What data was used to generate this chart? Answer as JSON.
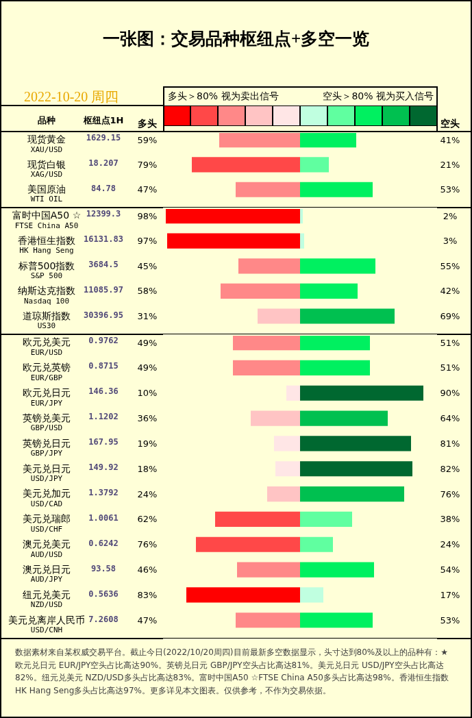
{
  "chart_data": [
    {
      "type": "other",
      "title": "一张图：交易品种枢纽点+多空一览",
      "subtitle": "2022-10-20 周四",
      "xlabel": "枢纽点1H",
      "categories": [
        null,
        null,
        null
      ],
      "values": [
        1629.15,
        18.207,
        84.78
      ],
      "data_labels": true
    },
    {
      "type": "bar",
      "orientation": "horizontal",
      "ylabel": "品种",
      "xlabel": "多头",
      "categories": [
        "现货黄金\nXAU/USD",
        "现货白银\nXAG/USD",
        "美国原油\nWTI OIL"
      ],
      "values": [
        59,
        79,
        47
      ],
      "colors": [
        "#ff8888",
        "#ff4848",
        "#ff8888"
      ],
      "value_labels": [
        "59%",
        "79%",
        "47%"
      ],
      "xlim": [
        100,
        0
      ],
      "annotations": [
        "多头＞80% 视为卖出信号"
      ]
    },
    {
      "type": "bar",
      "orientation": "horizontal",
      "xlabel": "空头",
      "categories": [
        null,
        null,
        null
      ],
      "values": [
        41,
        21,
        53
      ],
      "colors": [
        "#00f060",
        "#60ffa0",
        "#00f060"
      ],
      "value_labels": [
        "41%",
        "21%",
        "53%"
      ],
      "xlim": [
        0,
        100
      ],
      "annotations": [
        "空头＞80% 视为买入信号"
      ]
    },
    {
      "type": "other",
      "categories": [
        null,
        null,
        null,
        null,
        null
      ],
      "values": [
        12399.3,
        16131.83,
        3684.5,
        11085.97,
        30396.95
      ],
      "data_labels": true
    },
    {
      "type": "bar",
      "orientation": "horizontal",
      "categories": [
        "富时中国A50 ☆\nFTSE China A50",
        "香港恒生指数\nHK Hang Seng",
        "标普500指数\nS&P 500",
        "纳斯达克指数\nNasdaq 100",
        "道琼斯指数\nUS30"
      ],
      "values": [
        98,
        97,
        45,
        58,
        31
      ],
      "colors": [
        "#ff0000",
        "#ff0000",
        "#ff8888",
        "#ff8888",
        "#ffc4c4"
      ],
      "value_labels": [
        "98%",
        "97%",
        "45%",
        "58%",
        "31%"
      ],
      "xlim": [
        100,
        0
      ]
    },
    {
      "type": "bar",
      "orientation": "horizontal",
      "categories": [
        null,
        null,
        null,
        null,
        null
      ],
      "values": [
        2,
        3,
        55,
        42,
        69
      ],
      "colors": [
        "#c0ffe0",
        "#c0ffe0",
        "#00f060",
        "#00f060",
        "#00c050"
      ],
      "value_labels": [
        "2%",
        "3%",
        "55%",
        "42%",
        "69%"
      ],
      "xlim": [
        0,
        100
      ]
    },
    {
      "type": "other",
      "categories": [
        null,
        null,
        null,
        null,
        null,
        null,
        null,
        null,
        null,
        null,
        null,
        null
      ],
      "values": [
        0.9762,
        0.8715,
        146.36,
        1.1202,
        167.95,
        149.92,
        1.3792,
        1.0061,
        0.6242,
        93.58,
        0.5636,
        7.2608
      ],
      "data_labels": true,
      "annotations": [
        "数据素材来自某权威交易平台。截止今日(2022/10/20周四)目前最新多空数据显示，头寸达到80%及以上的品种有：★ 欧元兑日元 EUR/JPY空头占比高达90%。英镑兑日元 GBP/JPY空头占比高达81%。美元兑日元 USD/JPY空头占比高达82%。纽元兑美元 NZD/USD多头占比高达83%。富时中国A50 ☆FTSE China A50多头占比高达98%。香港恒生指数 HK Hang Seng多头占比高达97%。更多详见本文图表。仅供参考，不作为交易依据。"
      ]
    },
    {
      "type": "bar",
      "orientation": "horizontal",
      "categories": [
        "欧元兑美元\nEUR/USD",
        "欧元兑英镑\nEUR/GBP",
        "欧元兑日元\nEUR/JPY",
        "英镑兑美元\nGBP/USD",
        "英镑兑日元\nGBP/JPY",
        "美元兑日元\nUSD/JPY",
        "美元兑加元\nUSD/CAD",
        "美元兑瑞郎\nUSD/CHF",
        "澳元兑美元\nAUD/USD",
        "澳元兑日元\nAUD/JPY",
        "纽元兑美元\nNZD/USD",
        "美元兑离岸人民币\nUSD/CNH"
      ],
      "values": [
        49,
        49,
        10,
        36,
        19,
        18,
        24,
        62,
        76,
        46,
        83,
        47
      ],
      "colors": [
        "#ff8888",
        "#ff8888",
        "#ffe6e6",
        "#ffc4c4",
        "#ffe6e6",
        "#ffe6e6",
        "#ffc4c4",
        "#ff4848",
        "#ff4848",
        "#ff8888",
        "#ff0000",
        "#ff8888"
      ],
      "value_labels": [
        "49%",
        "49%",
        "10%",
        "36%",
        "19%",
        "18%",
        "24%",
        "62%",
        "76%",
        "46%",
        "83%",
        "47%"
      ],
      "xlim": [
        100,
        0
      ]
    },
    {
      "type": "bar",
      "orientation": "horizontal",
      "categories": [
        null,
        null,
        null,
        null,
        null,
        null,
        null,
        null,
        null,
        null,
        null,
        null
      ],
      "values": [
        51,
        51,
        90,
        64,
        81,
        82,
        76,
        38,
        24,
        54,
        17,
        53
      ],
      "colors": [
        "#00f060",
        "#00f060",
        "#006830",
        "#00c050",
        "#006830",
        "#006830",
        "#00c050",
        "#60ffa0",
        "#60ffa0",
        "#00f060",
        "#c0ffe0",
        "#00f060"
      ],
      "value_labels": [
        "51%",
        "51%",
        "90%",
        "64%",
        "81%",
        "82%",
        "76%",
        "38%",
        "24%",
        "54%",
        "17%",
        "53%"
      ],
      "xlim": [
        0,
        100
      ]
    }
  ]
}
